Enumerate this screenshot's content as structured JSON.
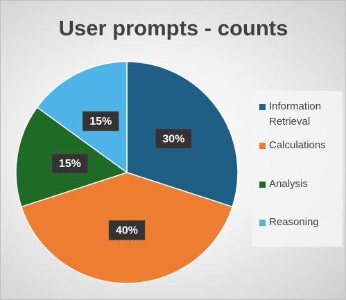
{
  "chart_data": {
    "type": "pie",
    "title": "User prompts - counts",
    "categories": [
      "Information Retrieval",
      "Calculations",
      "Analysis",
      "Reasoning"
    ],
    "values": [
      30,
      40,
      15,
      15
    ],
    "value_labels": [
      "30%",
      "40%",
      "15%",
      "15%"
    ],
    "colors": [
      "#1f5f85",
      "#ed7d31",
      "#1e6b25",
      "#4eb3e6"
    ],
    "legend": "right"
  }
}
